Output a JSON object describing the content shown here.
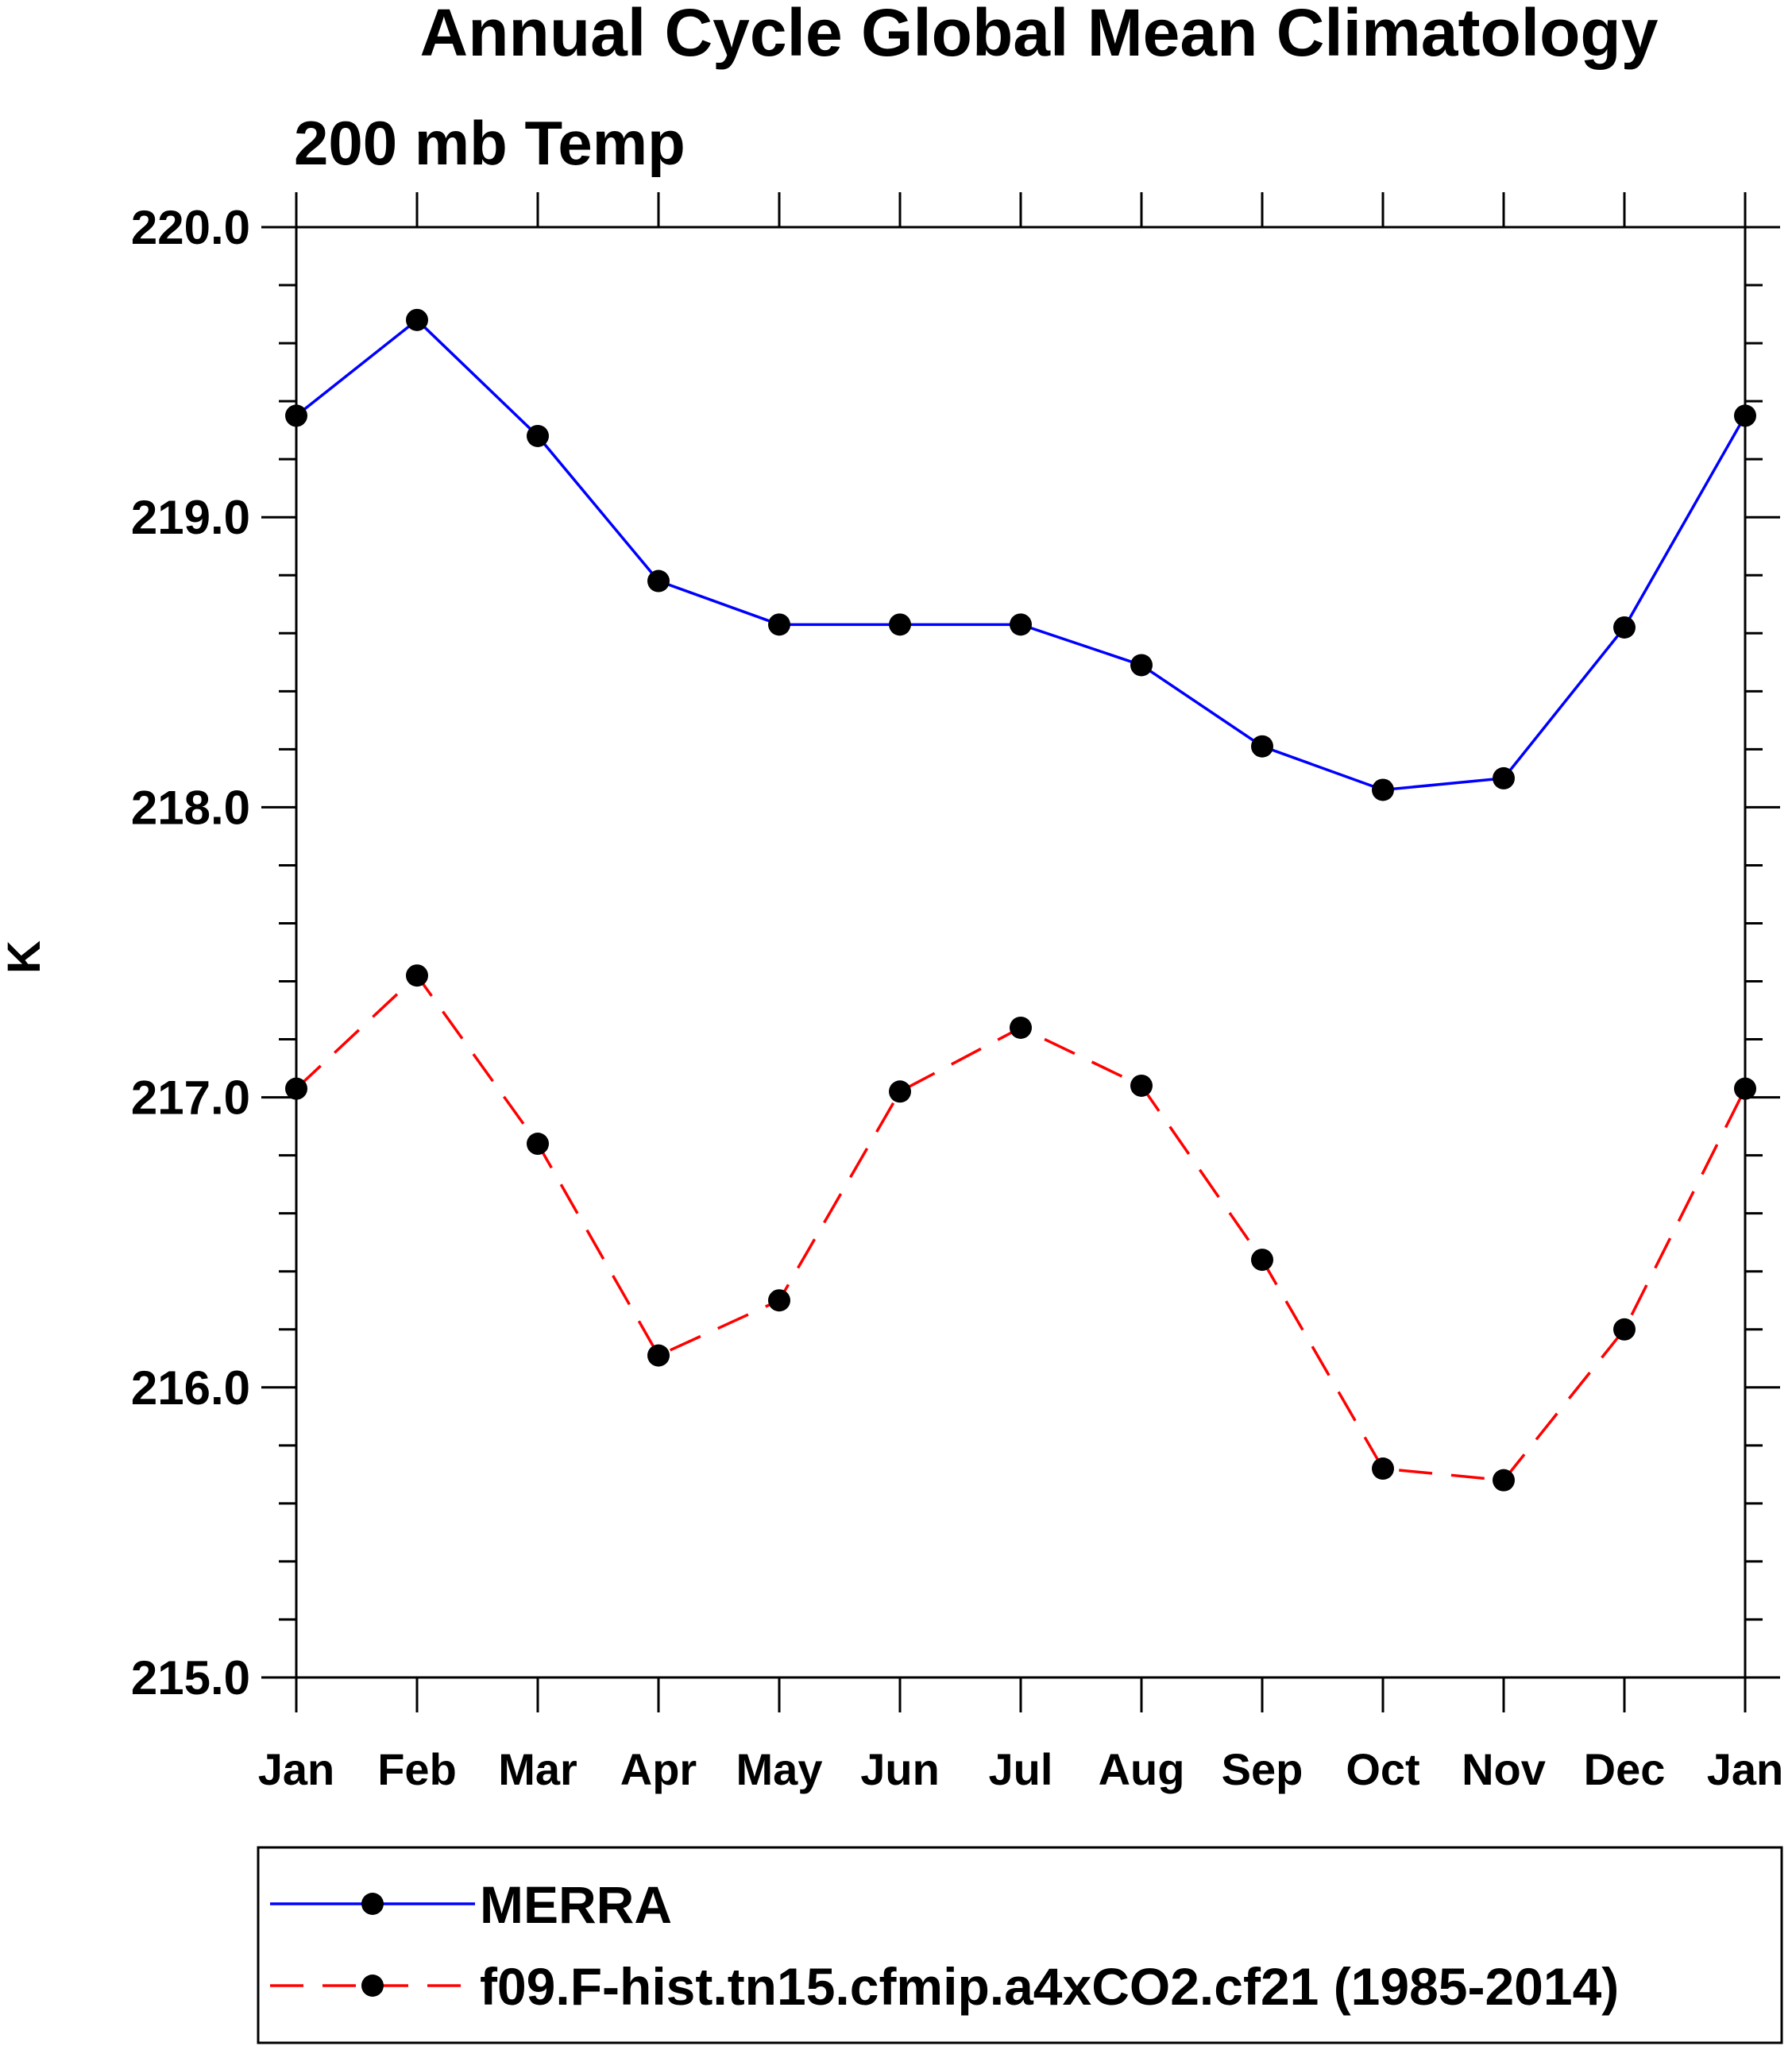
{
  "chart_data": {
    "type": "line",
    "title": "Annual Cycle Global Mean Climatology",
    "subtitle": "200 mb Temp",
    "xlabel": "",
    "ylabel": "K",
    "categories": [
      "Jan",
      "Feb",
      "Mar",
      "Apr",
      "May",
      "Jun",
      "Jul",
      "Aug",
      "Sep",
      "Oct",
      "Nov",
      "Dec",
      "Jan"
    ],
    "ylim": [
      215.0,
      220.0
    ],
    "yticks": [
      "215.0",
      "216.0",
      "217.0",
      "218.0",
      "219.0",
      "220.0"
    ],
    "grid": false,
    "legend_position": "bottom",
    "series": [
      {
        "name": "MERRA",
        "color": "#0000ff",
        "dash": "solid",
        "marker": "filled-circle",
        "values": [
          219.35,
          219.68,
          219.28,
          218.78,
          218.63,
          218.63,
          218.63,
          218.49,
          218.21,
          218.06,
          218.1,
          218.62,
          219.35
        ]
      },
      {
        "name": "f09.F-hist.tn15.cfmip.a4xCO2.cf21 (1985-2014)",
        "color": "#ff0000",
        "dash": "dashed",
        "marker": "filled-circle",
        "values": [
          217.03,
          217.42,
          216.84,
          216.11,
          216.3,
          217.02,
          217.24,
          217.04,
          216.44,
          215.72,
          215.68,
          216.2,
          217.03
        ]
      }
    ]
  }
}
